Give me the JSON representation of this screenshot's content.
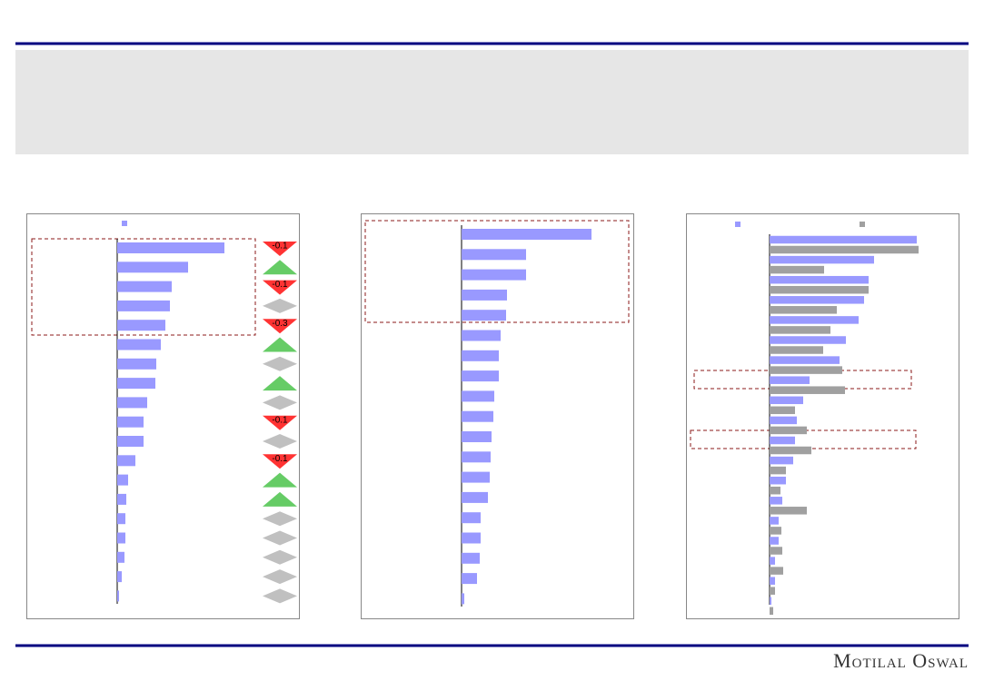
{
  "chart_data": [
    {
      "type": "barh",
      "color": "#9999ff",
      "xlim": [
        0,
        190
      ],
      "values": [
        118,
        78,
        60,
        58,
        53,
        48,
        43,
        42,
        33,
        29,
        29,
        20,
        12,
        10,
        9,
        9,
        8,
        5,
        2
      ],
      "trend": [
        "down",
        "up",
        "down",
        "flat",
        "down",
        "up",
        "flat",
        "up",
        "flat",
        "down",
        "flat",
        "down",
        "up",
        "up",
        "flat",
        "flat",
        "flat",
        "flat",
        "flat"
      ],
      "trend_labels": [
        "-0.1",
        null,
        "-0.1",
        null,
        "-0.3",
        null,
        null,
        null,
        null,
        "-0.1",
        null,
        "-0.1",
        null,
        null,
        null,
        null,
        null,
        null,
        null
      ],
      "legend": true
    },
    {
      "type": "barh",
      "color": "#9999ff",
      "xlim": [
        0,
        180
      ],
      "values": [
        143,
        71,
        71,
        50,
        49,
        43,
        41,
        41,
        36,
        35,
        33,
        32,
        31,
        29,
        21,
        21,
        20,
        17,
        3
      ],
      "legend": false
    },
    {
      "type": "barh-grouped",
      "xlim": [
        0,
        200
      ],
      "legend": true,
      "series": [
        {
          "color": "#9999ff",
          "values": [
            162,
            115,
            109,
            104,
            98,
            84,
            77,
            44,
            37,
            30,
            28,
            26,
            18,
            14,
            10,
            10,
            6,
            6,
            2
          ]
        },
        {
          "color": "#a0a0a0",
          "values": [
            164,
            60,
            109,
            74,
            67,
            59,
            80,
            83,
            28,
            41,
            46,
            18,
            12,
            41,
            13,
            14,
            15,
            6,
            4
          ]
        }
      ]
    }
  ],
  "footer": {
    "brand": "Motilal Oswal"
  }
}
